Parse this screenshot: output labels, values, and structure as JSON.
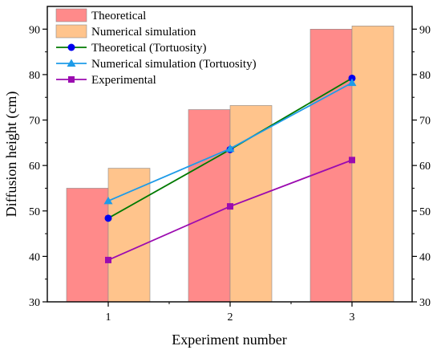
{
  "chart_data": {
    "type": "bar",
    "xlabel": "Experiment number",
    "ylabel": "Diffusion height (cm)",
    "categories": [
      "1",
      "2",
      "3"
    ],
    "ylim": [
      30,
      95
    ],
    "yticks": [
      30,
      40,
      50,
      60,
      70,
      80,
      90
    ],
    "right_axis": true,
    "grid": false,
    "legend_position": "top-left",
    "bar_series": [
      {
        "name": "Theoretical",
        "color": "#ff8a8a",
        "values": [
          55.0,
          72.3,
          90.0
        ]
      },
      {
        "name": "Numerical simulation",
        "color": "#ffc48c",
        "values": [
          59.4,
          73.2,
          90.7
        ]
      }
    ],
    "line_series": [
      {
        "name": "Theoretical (Tortuosity)",
        "color": "#0000ee",
        "line_color": "#007a00",
        "marker": "circle",
        "values": [
          48.4,
          63.5,
          79.2
        ]
      },
      {
        "name": "Numerical simulation (Tortuosity)",
        "color": "#1e9be8",
        "line_color": "#1e9be8",
        "marker": "triangle",
        "values": [
          52.2,
          63.7,
          78.2
        ]
      },
      {
        "name": "Experimental",
        "color": "#9b0bb0",
        "line_color": "#9b0bb0",
        "marker": "square",
        "values": [
          39.2,
          51.0,
          61.2
        ]
      }
    ]
  }
}
